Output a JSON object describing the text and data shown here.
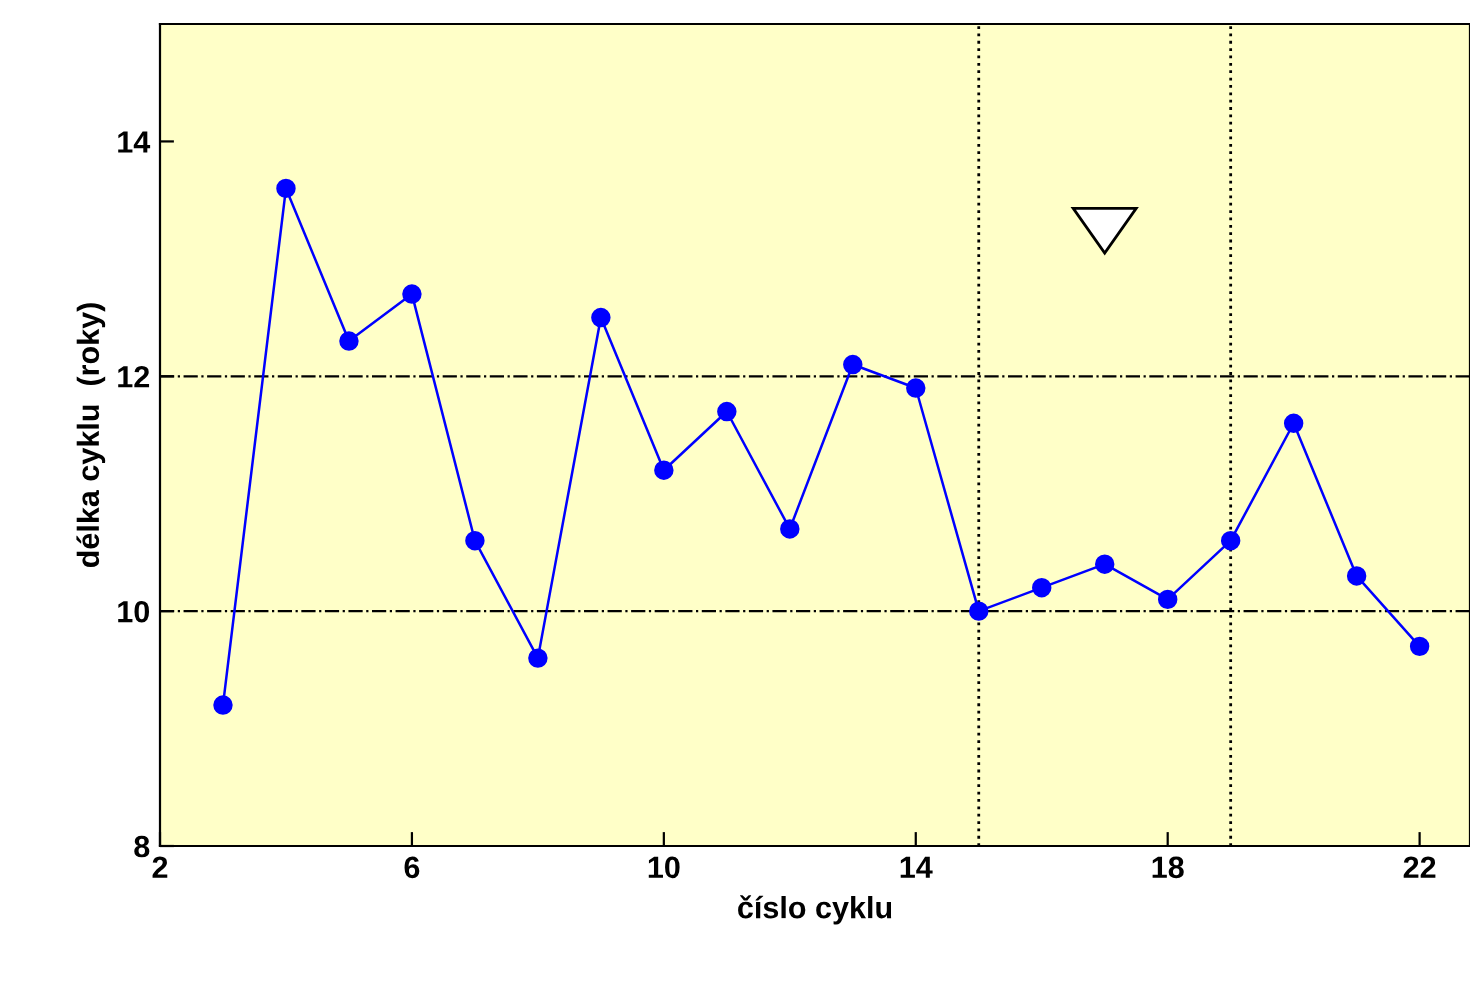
{
  "chart_data": {
    "type": "line",
    "xlabel": "číslo cyklu",
    "ylabel": "délka cyklu  (roky)",
    "x": [
      3,
      4,
      5,
      6,
      7,
      8,
      9,
      10,
      11,
      12,
      13,
      14,
      15,
      16,
      17,
      18,
      19,
      20,
      21,
      22
    ],
    "series": [
      {
        "color": "#0000ff",
        "values": [
          9.2,
          13.6,
          12.3,
          12.7,
          10.6,
          9.6,
          12.5,
          11.2,
          11.7,
          10.7,
          12.1,
          11.9,
          10.0,
          10.2,
          10.4,
          10.1,
          10.6,
          11.6,
          10.3,
          9.7
        ]
      }
    ],
    "marker": "circle",
    "line_style": "solid",
    "grid": false,
    "legend": false,
    "xlim": [
      2,
      22.8
    ],
    "xticks": [
      2,
      6,
      10,
      14,
      18,
      22
    ],
    "ylim": [
      8,
      15
    ],
    "yticks": [
      8,
      10,
      12,
      14
    ],
    "ref_lines": [
      {
        "axis": "y",
        "value": 10,
        "line_style": "dashdot",
        "color": "#000000"
      },
      {
        "axis": "y",
        "value": 12,
        "line_style": "dashdot",
        "color": "#000000"
      },
      {
        "axis": "x",
        "value": 15,
        "line_style": "dotted",
        "color": "#000000"
      },
      {
        "axis": "x",
        "value": 19,
        "line_style": "dotted",
        "color": "#000000"
      }
    ]
  }
}
